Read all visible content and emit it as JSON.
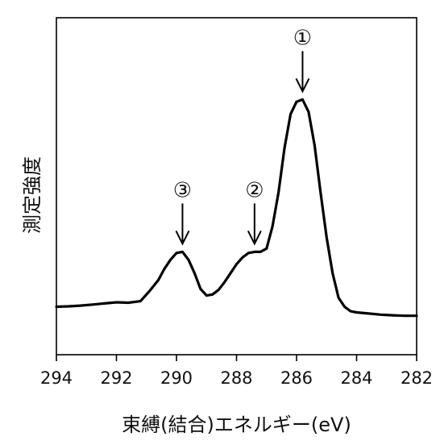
{
  "chart_data": {
    "type": "line",
    "title": "",
    "xlabel": "束縛(結合)エネルギー(eV)",
    "ylabel": "測定強度",
    "xlim": [
      294,
      282
    ],
    "x_reversed": true,
    "ylim": [
      0,
      1
    ],
    "y_ticks_shown": false,
    "grid": false,
    "x_ticks": [
      "294",
      "292",
      "290",
      "288",
      "286",
      "284",
      "282"
    ],
    "series": [
      {
        "name": "",
        "color": "#000000",
        "x": [
          294.0,
          293.6,
          293.2,
          292.8,
          292.4,
          292.0,
          291.6,
          291.2,
          290.9,
          290.6,
          290.4,
          290.2,
          290.0,
          289.8,
          289.6,
          289.4,
          289.2,
          289.0,
          288.8,
          288.6,
          288.4,
          288.2,
          288.0,
          287.8,
          287.6,
          287.4,
          287.2,
          287.0,
          286.8,
          286.6,
          286.4,
          286.2,
          286.0,
          285.8,
          285.6,
          285.4,
          285.2,
          285.0,
          284.8,
          284.6,
          284.4,
          284.2,
          284.0,
          283.6,
          283.2,
          282.8,
          282.4,
          282.0
        ],
        "y": [
          0.07,
          0.072,
          0.075,
          0.08,
          0.085,
          0.09,
          0.088,
          0.095,
          0.14,
          0.19,
          0.24,
          0.28,
          0.31,
          0.315,
          0.28,
          0.22,
          0.15,
          0.12,
          0.125,
          0.145,
          0.18,
          0.22,
          0.26,
          0.29,
          0.31,
          0.315,
          0.315,
          0.33,
          0.43,
          0.58,
          0.78,
          0.93,
          0.985,
          0.995,
          0.94,
          0.79,
          0.58,
          0.38,
          0.22,
          0.11,
          0.07,
          0.05,
          0.045,
          0.04,
          0.035,
          0.032,
          0.03,
          0.03
        ]
      }
    ],
    "annotations": [
      {
        "label": "①",
        "x": 285.8,
        "y": 0.995
      },
      {
        "label": "②",
        "x": 287.4,
        "y": 0.315
      },
      {
        "label": "③",
        "x": 289.8,
        "y": 0.315
      }
    ]
  }
}
